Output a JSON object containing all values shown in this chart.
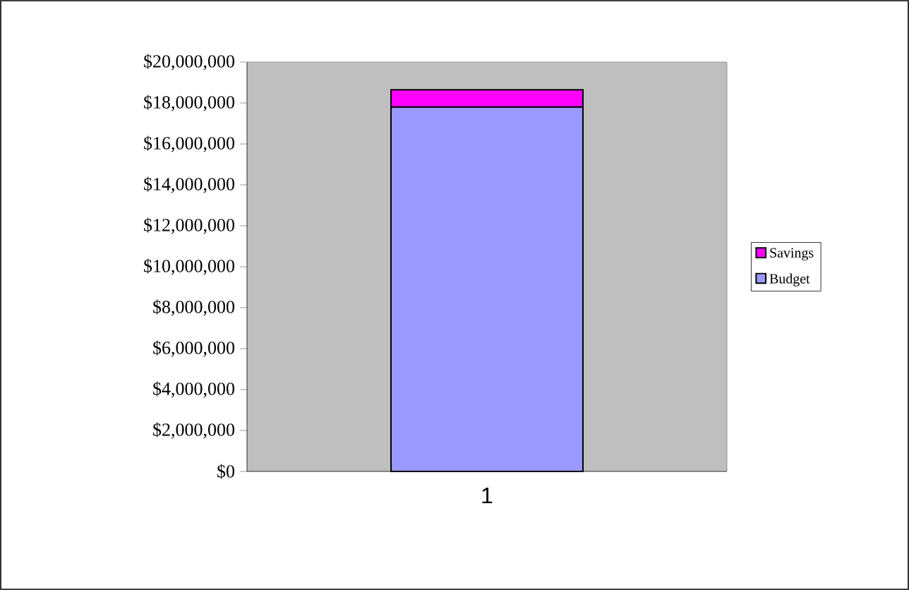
{
  "chart_data": {
    "type": "bar",
    "stacked": true,
    "categories": [
      "1"
    ],
    "series": [
      {
        "name": "Budget",
        "color": "#9999ff",
        "values": [
          17800000
        ]
      },
      {
        "name": "Savings",
        "color": "#ff00ff",
        "values": [
          850000
        ]
      }
    ],
    "ylim": [
      0,
      20000000
    ],
    "yticks": [
      {
        "value": 0,
        "label": "$0"
      },
      {
        "value": 2000000,
        "label": "$2,000,000"
      },
      {
        "value": 4000000,
        "label": "$4,000,000"
      },
      {
        "value": 6000000,
        "label": "$6,000,000"
      },
      {
        "value": 8000000,
        "label": "$8,000,000"
      },
      {
        "value": 10000000,
        "label": "$10,000,000"
      },
      {
        "value": 12000000,
        "label": "$12,000,000"
      },
      {
        "value": 14000000,
        "label": "$14,000,000"
      },
      {
        "value": 16000000,
        "label": "$16,000,000"
      },
      {
        "value": 18000000,
        "label": "$18,000,000"
      },
      {
        "value": 20000000,
        "label": "$20,000,000"
      }
    ],
    "legend": "right"
  }
}
